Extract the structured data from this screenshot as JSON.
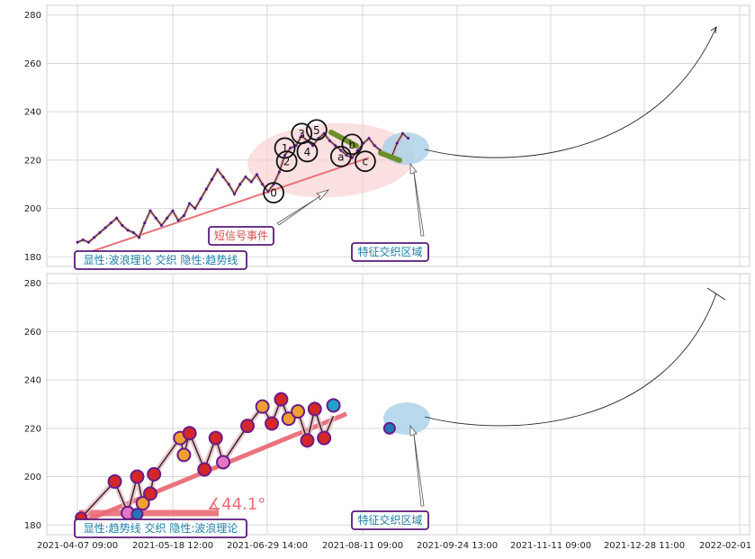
{
  "chart_data": [
    {
      "type": "line",
      "panel": "top",
      "ylim": [
        176,
        284
      ],
      "yticks": [
        180,
        200,
        220,
        240,
        260,
        280
      ],
      "grid": true,
      "series": [
        {
          "values": [
            [
              0,
              186
            ],
            [
              3,
              187
            ],
            [
              6,
              186
            ],
            [
              9,
              188
            ],
            [
              12,
              190
            ],
            [
              15,
              192
            ],
            [
              18,
              194
            ],
            [
              21,
              196
            ],
            [
              24,
              193
            ],
            [
              27,
              191
            ],
            [
              30,
              190
            ],
            [
              33,
              188
            ],
            [
              36,
              194
            ],
            [
              39,
              199
            ],
            [
              42,
              196
            ],
            [
              45,
              193
            ],
            [
              48,
              196
            ],
            [
              51,
              199
            ],
            [
              54,
              195
            ],
            [
              57,
              197
            ],
            [
              60,
              202
            ],
            [
              63,
              200
            ],
            [
              66,
              204
            ],
            [
              69,
              208
            ],
            [
              72,
              212
            ],
            [
              75,
              216
            ],
            [
              78,
              213
            ],
            [
              81,
              210
            ],
            [
              84,
              206
            ],
            [
              87,
              210
            ],
            [
              90,
              213
            ],
            [
              93,
              211
            ],
            [
              96,
              214
            ],
            [
              99,
              210
            ],
            [
              102,
              207
            ],
            [
              105,
              210
            ],
            [
              108,
              215
            ],
            [
              111,
              222
            ],
            [
              114,
              225
            ],
            [
              117,
              226
            ],
            [
              120,
              230
            ],
            [
              123,
              228
            ],
            [
              126,
              226
            ],
            [
              129,
              229
            ],
            [
              132,
              231
            ],
            [
              135,
              228
            ],
            [
              138,
              226
            ],
            [
              141,
              224
            ],
            [
              144,
              222
            ],
            [
              147,
              221
            ],
            [
              150,
              224
            ],
            [
              153,
              227
            ],
            [
              156,
              229
            ],
            [
              159,
              226
            ],
            [
              162,
              224
            ],
            [
              165,
              222
            ],
            [
              168,
              221
            ],
            [
              171,
              227
            ],
            [
              174,
              231
            ],
            [
              177,
              229
            ]
          ]
        }
      ],
      "trendline": [
        [
          3,
          181
        ],
        [
          156,
          221
        ]
      ],
      "wave_labels": [
        {
          "label": "0",
          "x": 105,
          "y": 206.5
        },
        {
          "label": "1",
          "x": 111,
          "y": 225
        },
        {
          "label": "2",
          "x": 112,
          "y": 219.5
        },
        {
          "label": "3",
          "x": 120,
          "y": 231
        },
        {
          "label": "4",
          "x": 123,
          "y": 223.5
        },
        {
          "label": "5",
          "x": 128,
          "y": 232.5
        },
        {
          "label": "a",
          "x": 141,
          "y": 221.5
        },
        {
          "label": "b",
          "x": 147,
          "y": 226.5
        },
        {
          "label": "c",
          "x": 154,
          "y": 219.5
        }
      ],
      "annotations": [
        {
          "text": "短信号事件"
        },
        {
          "text": "特征交织区域"
        },
        {
          "text": "显性:波浪理论 交织 隐性:趋势线"
        }
      ]
    },
    {
      "type": "line",
      "panel": "bottom",
      "ylim": [
        176,
        284
      ],
      "yticks": [
        180,
        200,
        220,
        240,
        260,
        280
      ],
      "grid": true,
      "xticks": [
        "2021-04-07 09:00",
        "2021-05-18 12:00",
        "2021-06-29 14:00",
        "2021-08-11 09:00",
        "2021-09-24 13:00",
        "2021-11-11 09:00",
        "2021-12-28 11:00",
        "2022-02-01 13:00"
      ],
      "zigzag": [
        [
          2,
          183
        ],
        [
          20,
          198
        ],
        [
          27,
          185
        ],
        [
          32,
          200
        ],
        [
          35,
          189
        ],
        [
          39,
          193
        ],
        [
          41,
          201
        ],
        [
          55,
          216
        ],
        [
          57,
          209
        ],
        [
          60,
          218
        ],
        [
          68,
          203
        ],
        [
          74,
          216
        ],
        [
          78,
          206
        ],
        [
          91,
          221
        ],
        [
          99,
          229
        ],
        [
          104,
          222
        ],
        [
          109,
          232
        ],
        [
          113,
          224
        ],
        [
          118,
          227
        ],
        [
          123,
          215
        ],
        [
          127,
          228
        ],
        [
          132,
          216
        ],
        [
          137,
          225
        ]
      ],
      "trendline": [
        [
          2,
          181
        ],
        [
          144,
          226
        ]
      ],
      "angle_label": "∡44.1°",
      "annotations": [
        {
          "text": "特征交织区域"
        },
        {
          "text": "显性:趋势线 交织 隐性:波浪理论"
        }
      ]
    }
  ]
}
